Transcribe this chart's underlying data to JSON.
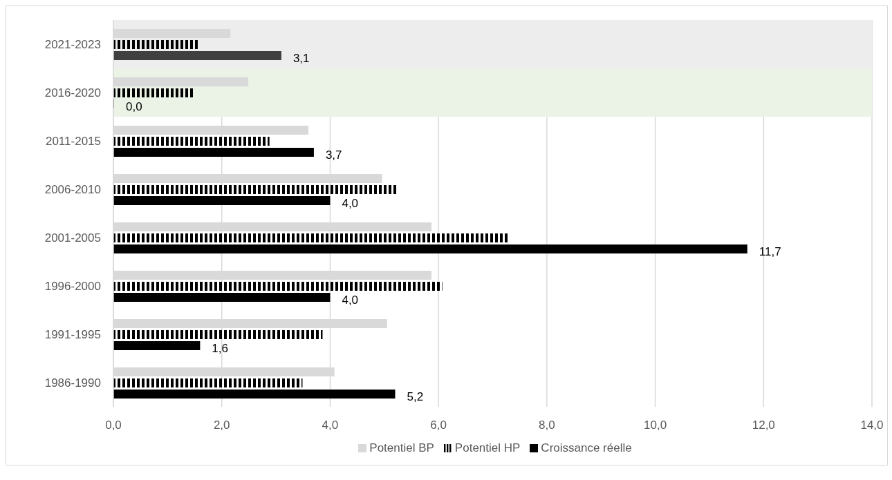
{
  "chart_data": {
    "type": "bar",
    "orientation": "horizontal",
    "categories": [
      "2021-2023",
      "2016-2020",
      "2011-2015",
      "2006-2010",
      "2001-2005",
      "1996-2000",
      "1991-1995",
      "1986-1990"
    ],
    "series": [
      {
        "name": "Potentiel BP",
        "color": "#d9d9d9",
        "values": [
          2.16,
          2.49,
          3.6,
          4.96,
          5.87,
          5.87,
          5.05,
          4.08
        ]
      },
      {
        "name": "Potentiel HP",
        "color": "#000000",
        "values": [
          1.57,
          1.48,
          2.88,
          5.23,
          7.3,
          6.07,
          3.86,
          3.49
        ]
      },
      {
        "name": "Croissance réelle",
        "color": "#000000",
        "colors": [
          "#404040",
          "#000000",
          "#000000",
          "#000000",
          "#000000",
          "#000000",
          "#000000",
          "#000000"
        ],
        "values": [
          3.1,
          0.0,
          3.7,
          4.0,
          11.7,
          4.0,
          1.6,
          5.2
        ],
        "value_labels": [
          "3,1",
          "0,0",
          "3,7",
          "4,0",
          "11,7",
          "4,0",
          "1,6",
          "5,2"
        ]
      }
    ],
    "xlim": [
      0,
      14
    ],
    "xticks": [
      {
        "value": 0,
        "label": "0,0"
      },
      {
        "value": 2,
        "label": "2,0"
      },
      {
        "value": 4,
        "label": "4,0"
      },
      {
        "value": 6,
        "label": "6,0"
      },
      {
        "value": 8,
        "label": "8,0"
      },
      {
        "value": 10,
        "label": "10,0"
      },
      {
        "value": 12,
        "label": "12,0"
      },
      {
        "value": 14,
        "label": "14,0"
      }
    ],
    "bands": [
      {
        "axis": "y",
        "from": "2021-2023",
        "to": "2021-2023",
        "color": "#ededed"
      },
      {
        "axis": "y",
        "from": "2016-2020",
        "to": "2016-2020",
        "color": "#ebf3e6"
      }
    ],
    "grid": "x",
    "legend": "bottom"
  }
}
